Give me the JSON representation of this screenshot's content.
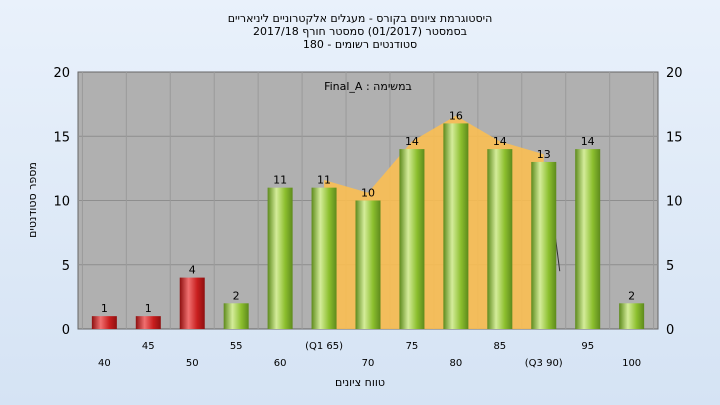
{
  "chart_data": {
    "type": "bar",
    "title_lines": [
      "היסטוגרמת ציונים בקורס - מעגלים אלקטרוניים ליניאריים",
      "בסמסטר  (01/2017)  סמסטר חורף 2017/18",
      "סטודנטים רשומים - 180"
    ],
    "annotation": "במשימה : Final_A",
    "xlabel": "טווח ציונים",
    "ylabel": "מספר סטודנטים",
    "categories": [
      "40",
      "45",
      "50",
      "55",
      "60",
      "(Q1 65)",
      "70",
      "75",
      "80",
      "85",
      "(Q3 90)",
      "95",
      "100"
    ],
    "values": [
      1,
      1,
      4,
      2,
      11,
      11,
      10,
      14,
      16,
      14,
      13,
      14,
      2
    ],
    "value_labels": [
      "1",
      "1",
      "4",
      "2",
      "11",
      "11",
      "10",
      "14",
      "16",
      "14",
      "13",
      "14",
      "2"
    ],
    "bar_colors": [
      "#cc2222",
      "#cc2222",
      "#cc2222",
      "#8cbf2e",
      "#8cbf2e",
      "#8cbf2e",
      "#8cbf2e",
      "#8cbf2e",
      "#8cbf2e",
      "#8cbf2e",
      "#8cbf2e",
      "#8cbf2e",
      "#8cbf2e"
    ],
    "ylim": [
      0,
      20
    ],
    "yticks": [
      "0",
      "5",
      "10",
      "15",
      "20"
    ],
    "grid": true,
    "plot_background": "#b0b0b0",
    "quartile_area_color": "#ffc04d"
  }
}
